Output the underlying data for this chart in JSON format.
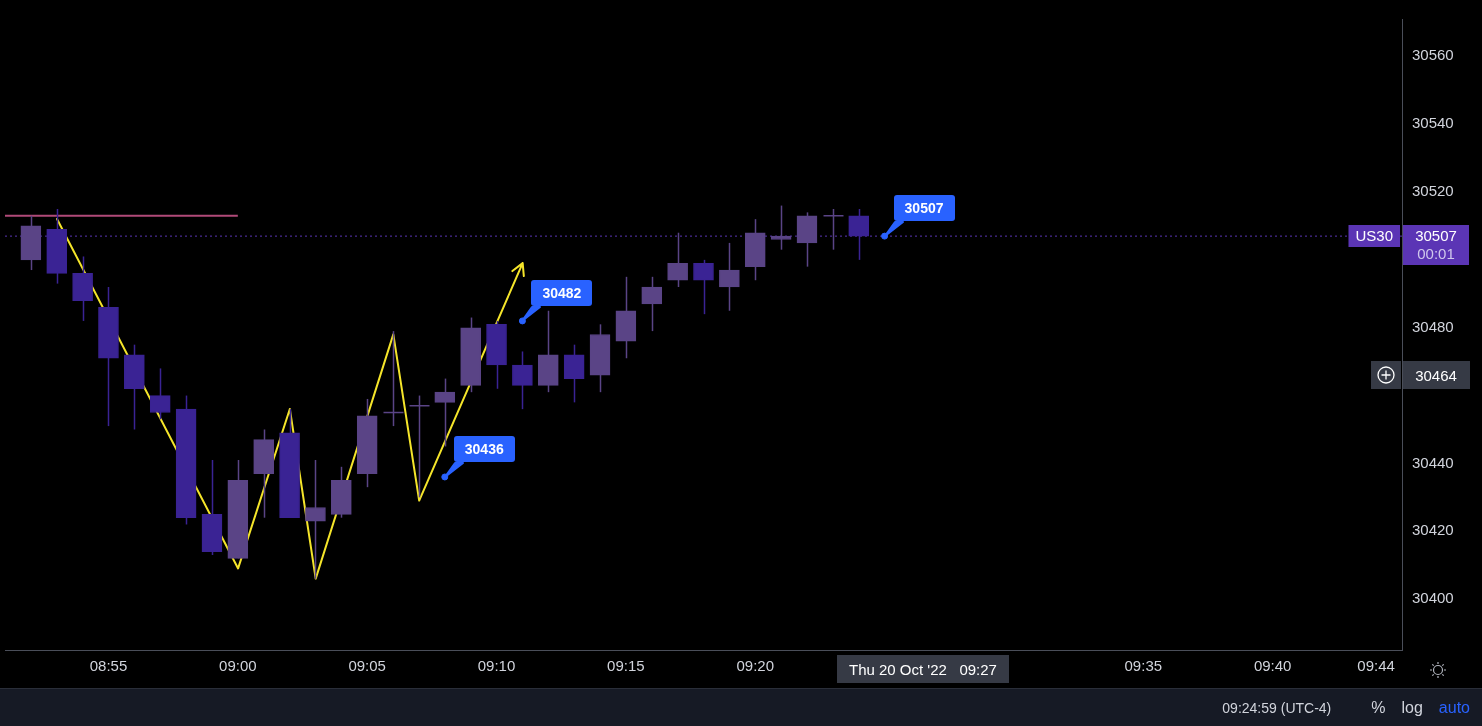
{
  "chart_data": {
    "type": "candlestick",
    "x": [
      "2022-10-20T08:52",
      "2022-10-20T08:53",
      "2022-10-20T08:54",
      "2022-10-20T08:55",
      "2022-10-20T08:56",
      "2022-10-20T08:57",
      "2022-10-20T08:58",
      "2022-10-20T08:59",
      "2022-10-20T09:00",
      "2022-10-20T09:01",
      "2022-10-20T09:02",
      "2022-10-20T09:03",
      "2022-10-20T09:04",
      "2022-10-20T09:05",
      "2022-10-20T09:06",
      "2022-10-20T09:07",
      "2022-10-20T09:08",
      "2022-10-20T09:09",
      "2022-10-20T09:10",
      "2022-10-20T09:11",
      "2022-10-20T09:12",
      "2022-10-20T09:13",
      "2022-10-20T09:14",
      "2022-10-20T09:15",
      "2022-10-20T09:16",
      "2022-10-20T09:17",
      "2022-10-20T09:18",
      "2022-10-20T09:19",
      "2022-10-20T09:20",
      "2022-10-20T09:21",
      "2022-10-20T09:22",
      "2022-10-20T09:23",
      "2022-10-20T09:24"
    ],
    "ohlc": [
      [
        30500,
        30513,
        30497,
        30510
      ],
      [
        30509,
        30515,
        30493,
        30496
      ],
      [
        30496,
        30501,
        30482,
        30488
      ],
      [
        30486,
        30492,
        30451,
        30471
      ],
      [
        30472,
        30475,
        30450,
        30462
      ],
      [
        30460,
        30468,
        30453,
        30455
      ],
      [
        30456,
        30460,
        30422,
        30424
      ],
      [
        30425,
        30441,
        30413,
        30414
      ],
      [
        30412,
        30441,
        30412,
        30435
      ],
      [
        30437,
        30450,
        30424,
        30447
      ],
      [
        30449,
        30456,
        30424,
        30424
      ],
      [
        30423,
        30441,
        30406,
        30427
      ],
      [
        30425,
        30439,
        30424,
        30435
      ],
      [
        30437,
        30459,
        30433,
        30454
      ],
      [
        30455,
        30479,
        30451,
        30455
      ],
      [
        30457,
        30460,
        30430,
        30457
      ],
      [
        30458,
        30465,
        30445,
        30461
      ],
      [
        30463,
        30483,
        30461,
        30480
      ],
      [
        30481,
        30482,
        30462,
        30469
      ],
      [
        30469,
        30473,
        30456,
        30463
      ],
      [
        30463,
        30485,
        30461,
        30472
      ],
      [
        30472,
        30475,
        30458,
        30465
      ],
      [
        30466,
        30481,
        30461,
        30478
      ],
      [
        30476,
        30495,
        30471,
        30485
      ],
      [
        30487,
        30495,
        30479,
        30492
      ],
      [
        30494,
        30508,
        30492,
        30499
      ],
      [
        30499,
        30500,
        30484,
        30494
      ],
      [
        30492,
        30505,
        30485,
        30497
      ],
      [
        30498,
        30512,
        30494,
        30508
      ],
      [
        30506,
        30516,
        30503,
        30507
      ],
      [
        30505,
        30514,
        30498,
        30513
      ],
      [
        30513,
        30515,
        30503,
        30513
      ],
      [
        30513,
        30515,
        30500,
        30507
      ]
    ],
    "colors": [
      "#5a4486",
      "#3a2394",
      "#3a2394",
      "#3a2394",
      "#3a2394",
      "#3a2394",
      "#3a2394",
      "#3a2394",
      "#5a4486",
      "#5a4486",
      "#3a2394",
      "#5a4486",
      "#5a4486",
      "#5a4486",
      "#5a4486",
      "#5a4486",
      "#5a4486",
      "#5a4486",
      "#3a2394",
      "#3a2394",
      "#5a4486",
      "#3a2394",
      "#5a4486",
      "#5a4486",
      "#5a4486",
      "#5a4486",
      "#3a2394",
      "#5a4486",
      "#5a4486",
      "#5a4486",
      "#5a4486",
      "#5a4486",
      "#3a2394"
    ],
    "series": [
      {
        "type": "line",
        "color": "#f5e52a",
        "x": [
          "2022-10-20T08:53",
          "2022-10-20T09:00",
          "2022-10-20T09:02",
          "2022-10-20T09:03",
          "2022-10-20T09:06",
          "2022-10-20T09:07",
          "2022-10-20T09:11"
        ],
        "values": [
          30512,
          30409,
          30456,
          30406,
          30478,
          30429,
          30499
        ]
      },
      {
        "type": "line",
        "color": "#b04a78",
        "x": [
          "2022-10-20T08:51",
          "2022-10-20T09:00"
        ],
        "values": [
          30513,
          30513
        ]
      },
      {
        "type": "scatter",
        "color": "#2962ff",
        "marker": "circle",
        "x": [
          "2022-10-20T09:11",
          "2022-10-20T09:08",
          "2022-10-20T09:25"
        ],
        "values": [
          30482,
          30436,
          30507
        ],
        "value_labels": [
          "30482",
          "30436",
          "30507"
        ]
      }
    ],
    "xlim": [
      "2022-10-20T08:51",
      "2022-10-20T09:45"
    ],
    "xticks": [
      {
        "value": "2022-10-20T08:55",
        "label": "08:55"
      },
      {
        "value": "2022-10-20T09:00",
        "label": "09:00"
      },
      {
        "value": "2022-10-20T09:05",
        "label": "09:05"
      },
      {
        "value": "2022-10-20T09:10",
        "label": "09:10"
      },
      {
        "value": "2022-10-20T09:15",
        "label": "09:15"
      },
      {
        "value": "2022-10-20T09:20",
        "label": "09:20"
      },
      {
        "value": "2022-10-20T09:35",
        "label": "09:35"
      },
      {
        "value": "2022-10-20T09:40",
        "label": "09:40"
      },
      {
        "value": "2022-10-20T09:44",
        "label": "09:44"
      }
    ],
    "ylim": [
      30385,
      30571
    ],
    "yticks": [
      30400,
      30420,
      30440,
      30480,
      30520,
      30540,
      30560
    ],
    "grid": false,
    "legend": false,
    "ref_lines": [
      {
        "axis": "y",
        "value": 30507,
        "label": "US30",
        "color": "#5b35b5",
        "line_style": "dotted"
      }
    ],
    "annotations": [
      "30507",
      "00:01",
      "30464",
      "Thu 20 Oct '22   09:27",
      "09:24:59 (UTC-4)",
      "%",
      "log",
      "auto"
    ]
  }
}
